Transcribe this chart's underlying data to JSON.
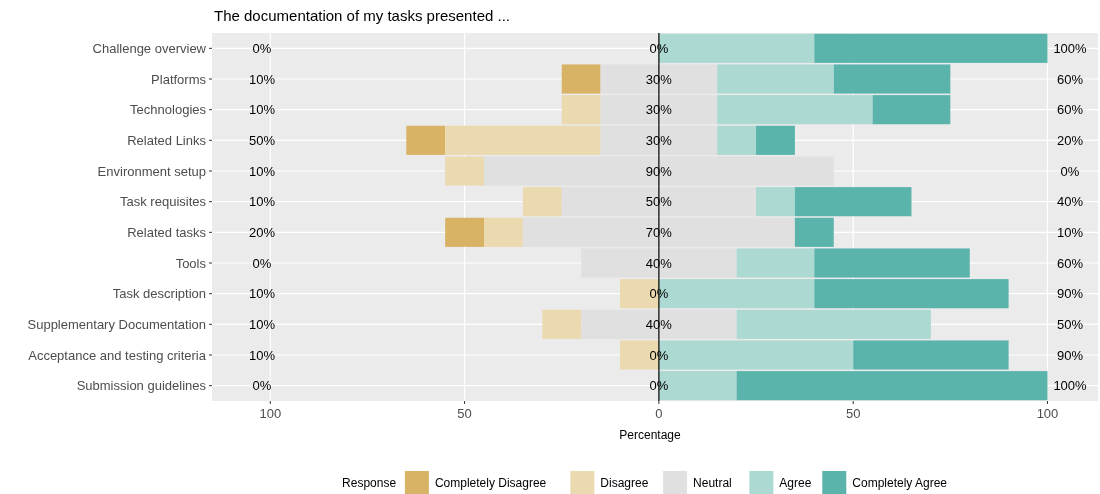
{
  "chart_data": {
    "type": "bar",
    "orientation": "horizontal",
    "title": "The documentation of my tasks presented ...",
    "xlabel": "Percentage",
    "legend_title": "Response",
    "legend": "bottom",
    "grid": true,
    "categories": [
      "Challenge overview",
      "Platforms",
      "Technologies",
      "Related Links",
      "Environment setup",
      "Task requisites",
      "Related tasks",
      "Tools",
      "Task description",
      "Supplementary Documentation",
      "Acceptance and testing criteria",
      "Submission guidelines"
    ],
    "xlim": [
      -115,
      113
    ],
    "xticks": [
      {
        "value": -100,
        "label": "100"
      },
      {
        "value": -50,
        "label": "50"
      },
      0,
      50,
      100
    ],
    "ref_lines": [
      {
        "axis": "x",
        "value": 0,
        "color": "#000000"
      }
    ],
    "series": [
      {
        "name": "Completely Disagree",
        "color": "#d8b365",
        "values": [
          null,
          10,
          null,
          10,
          null,
          null,
          10,
          null,
          null,
          null,
          null,
          null
        ],
        "base": [
          null,
          -25,
          null,
          -65,
          null,
          null,
          -55,
          null,
          null,
          null,
          null,
          null
        ]
      },
      {
        "name": "Disagree",
        "color": "#ebd9b0",
        "values": [
          null,
          null,
          10,
          40,
          10,
          10,
          10,
          null,
          10,
          10,
          10,
          null
        ],
        "base": [
          null,
          null,
          -25,
          -55,
          -55,
          -35,
          -45,
          null,
          -10,
          -30,
          -10,
          null
        ]
      },
      {
        "name": "Neutral",
        "color": "#e0e0e0",
        "values": [
          null,
          30,
          30,
          30,
          90,
          50,
          70,
          40,
          null,
          40,
          null,
          null
        ],
        "base": [
          null,
          -15,
          -15,
          -15,
          -45,
          -25,
          -35,
          -20,
          null,
          -20,
          null,
          null
        ]
      },
      {
        "name": "Agree",
        "color": "#acd9d2",
        "values": [
          40,
          30,
          40,
          10,
          null,
          10,
          null,
          20,
          40,
          50,
          50,
          20
        ],
        "base": [
          0,
          15,
          15,
          15,
          null,
          25,
          null,
          20,
          0,
          20,
          0,
          0
        ]
      },
      {
        "name": "Completely Agree",
        "color": "#5ab4ac",
        "values": [
          60,
          30,
          20,
          10,
          null,
          30,
          10,
          40,
          50,
          null,
          40,
          80
        ],
        "base": [
          40,
          45,
          55,
          25,
          null,
          35,
          35,
          40,
          40,
          null,
          50,
          20
        ]
      }
    ],
    "annotations": [
      "0%",
      "0%",
      "100%",
      "10%",
      "30%",
      "60%",
      "10%",
      "30%",
      "60%",
      "50%",
      "30%",
      "20%",
      "10%",
      "90%",
      "0%",
      "10%",
      "50%",
      "40%",
      "20%",
      "70%",
      "10%",
      "0%",
      "40%",
      "60%",
      "10%",
      "0%",
      "90%",
      "10%",
      "40%",
      "50%",
      "10%",
      "0%",
      "90%",
      "0%",
      "0%",
      "100%"
    ]
  }
}
